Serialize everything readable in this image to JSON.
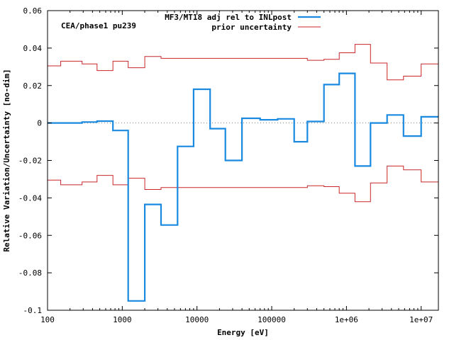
{
  "chart_data": {
    "type": "line",
    "step": true,
    "xscale": "log",
    "xlabel": "Energy [eV]",
    "ylabel": "Relative Variation/Uncertainty [no-dim]",
    "xlim": [
      100,
      17000000
    ],
    "ylim": [
      -0.1,
      0.06
    ],
    "x_ticks": [
      {
        "value": 100,
        "label": "100"
      },
      {
        "value": 1000,
        "label": "1000"
      },
      {
        "value": 10000,
        "label": "10000"
      },
      {
        "value": 100000,
        "label": "100000"
      },
      {
        "value": 1000000,
        "label": "1e+06"
      },
      {
        "value": 10000000,
        "label": "1e+07"
      }
    ],
    "y_ticks": [
      {
        "value": -0.1,
        "label": "-0.1"
      },
      {
        "value": -0.08,
        "label": "-0.08"
      },
      {
        "value": -0.06,
        "label": "-0.06"
      },
      {
        "value": -0.04,
        "label": "-0.04"
      },
      {
        "value": -0.02,
        "label": "-0.02"
      },
      {
        "value": 0,
        "label": "0"
      },
      {
        "value": 0.02,
        "label": "0.02"
      },
      {
        "value": 0.04,
        "label": "0.04"
      },
      {
        "value": 0.06,
        "label": "0.06"
      }
    ],
    "annotation": "CEA/phase1 pu239",
    "legend_position": "top-right",
    "zero_line": true,
    "series": [
      {
        "name": "MF3/MT18 adj rel to INLpost",
        "color": "#1a8ae0",
        "edges": [
          100,
          290,
          460,
          750,
          1200,
          2000,
          3300,
          5500,
          9000,
          15000,
          24000,
          40000,
          70000,
          120000,
          200000,
          300000,
          500000,
          800000,
          1300000,
          2100000,
          3500000,
          5800000,
          10000000,
          17000000
        ],
        "values": [
          0.0,
          0.0005,
          0.001,
          -0.004,
          -0.095,
          -0.0435,
          -0.0545,
          -0.0125,
          0.018,
          -0.003,
          -0.02,
          0.0025,
          0.0017,
          0.0022,
          -0.01,
          0.0008,
          0.0205,
          0.0265,
          -0.023,
          0.0,
          0.0043,
          -0.007,
          0.0033
        ]
      },
      {
        "name": "prior uncertainty",
        "color": "#c8262a",
        "edges": [
          100,
          150,
          290,
          460,
          750,
          1200,
          2000,
          3300,
          5500,
          9000,
          15000,
          24000,
          40000,
          70000,
          120000,
          200000,
          300000,
          500000,
          800000,
          1300000,
          2100000,
          3500000,
          5800000,
          10000000,
          17000000
        ],
        "values": [
          0.0305,
          0.033,
          0.0315,
          0.028,
          0.033,
          0.0295,
          0.0355,
          0.0345,
          0.0345,
          0.0345,
          0.0345,
          0.0345,
          0.0345,
          0.0345,
          0.0345,
          0.0345,
          0.0335,
          0.034,
          0.0375,
          0.042,
          0.032,
          0.023,
          0.025,
          0.0315
        ],
        "mirrored": true
      }
    ]
  }
}
